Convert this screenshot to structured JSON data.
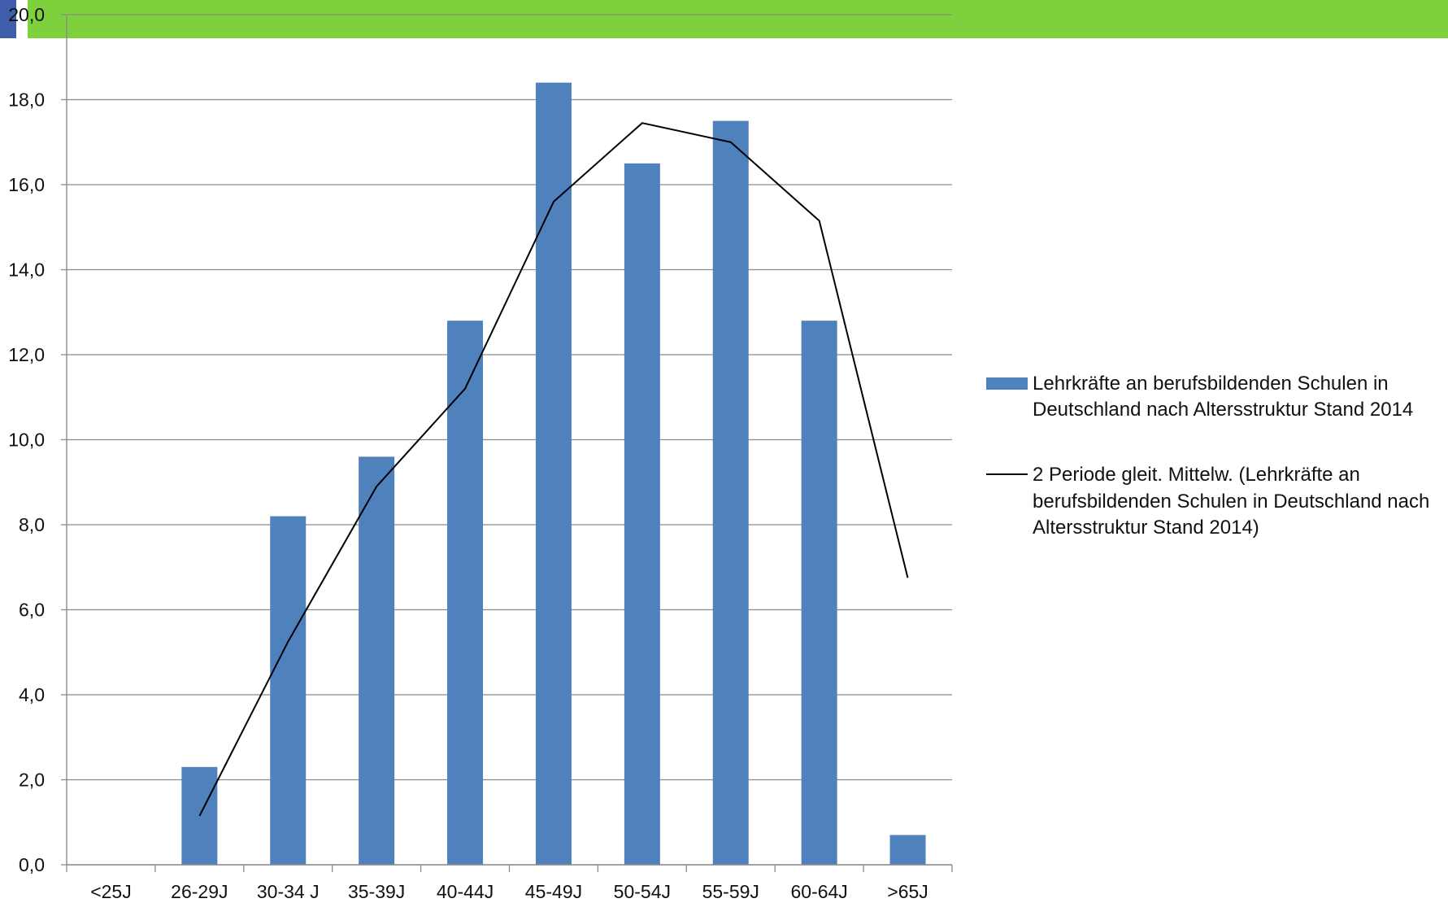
{
  "colors": {
    "top_band": "#7ed13c",
    "top_accent": "#3f5fad",
    "bar": "#4f81bd",
    "line": "#000000",
    "grid": "#8c8c8c"
  },
  "chart_data": {
    "type": "bar",
    "title": "",
    "xlabel": "",
    "ylabel": "",
    "ylim": [
      0,
      20
    ],
    "y_ticks": [
      "0,0",
      "2,0",
      "4,0",
      "6,0",
      "8,0",
      "10,0",
      "12,0",
      "14,0",
      "16,0",
      "18,0",
      "20,0"
    ],
    "grid": true,
    "legend_position": "right",
    "categories": [
      "<25J",
      "26-29J",
      "30-34 J",
      "35-39J",
      "40-44J",
      "45-49J",
      "50-54J",
      "55-59J",
      "60-64J",
      ">65J"
    ],
    "series": [
      {
        "name": "Lehrkräfte an berufsbildenden Schulen in Deutschland nach Altersstruktur Stand 2014",
        "type": "bar",
        "values": [
          0,
          2.3,
          8.2,
          9.6,
          12.8,
          18.4,
          16.5,
          17.5,
          12.8,
          0.7
        ]
      },
      {
        "name": "2 Periode gleit. Mittelw. (Lehrkräfte an berufsbildenden Schulen in Deutschland nach Altersstruktur Stand 2014)",
        "type": "line",
        "values": [
          null,
          1.15,
          5.25,
          8.9,
          11.2,
          15.6,
          17.45,
          17.0,
          15.15,
          6.75
        ]
      }
    ],
    "legend": {
      "bar_label_lines": [
        "Lehrkräfte an berufsbildenden Schulen in",
        "Deutschland nach Altersstruktur Stand 2014"
      ],
      "line_label_lines": [
        "2 Periode gleit. Mittelw. (Lehrkräfte an",
        "berufsbildenden Schulen in Deutschland nach",
        "Altersstruktur Stand 2014)"
      ]
    }
  }
}
